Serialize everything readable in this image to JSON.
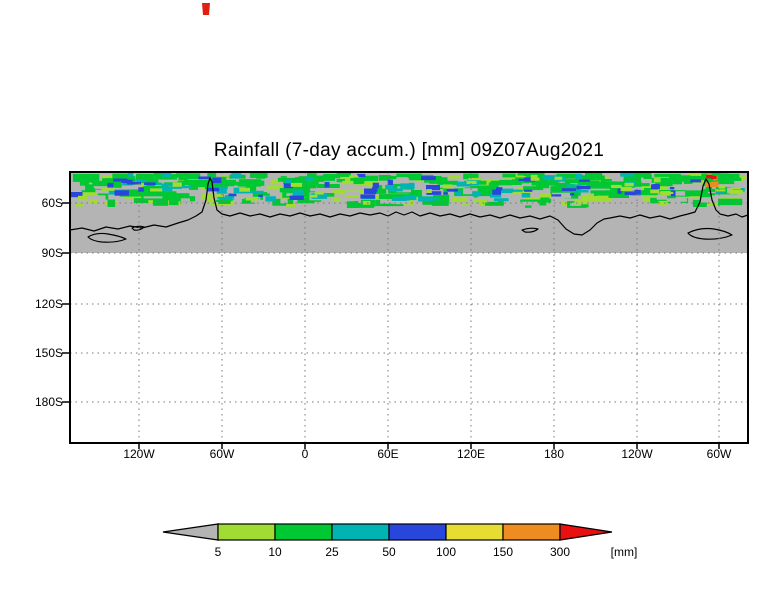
{
  "title": "Rainfall (7-day accum.) [mm] 09Z07Aug2021",
  "axes": {
    "y_labels": [
      "60S",
      "90S",
      "120S",
      "150S",
      "180S"
    ],
    "x_labels": [
      "120W",
      "60W",
      "0",
      "60E",
      "120E",
      "180",
      "120W",
      "60W"
    ]
  },
  "colorbar": {
    "labels": [
      "5",
      "10",
      "25",
      "50",
      "100",
      "150",
      "300"
    ],
    "unit": "[mm]",
    "segments": [
      {
        "range": "< 5",
        "color": "#b4b4b4"
      },
      {
        "range": "5-10",
        "color": "#a0dc32"
      },
      {
        "range": "10-25",
        "color": "#00c832"
      },
      {
        "range": "25-50",
        "color": "#00b4b4"
      },
      {
        "range": "50-100",
        "color": "#2846dc"
      },
      {
        "range": "100-150",
        "color": "#e6dc32"
      },
      {
        "range": "150-300",
        "color": "#ee8c22"
      },
      {
        "range": "> 300",
        "color": "#e81010"
      }
    ]
  },
  "map": {
    "land_color": "#b4b4b4",
    "coast_color": "#000000"
  },
  "chart_data": {
    "type": "heatmap",
    "title": "Rainfall (7-day accum.) [mm] 09Z07Aug2021",
    "variable": "7-day accumulated rainfall",
    "unit": "mm",
    "valid_time": "09Z07Aug2021",
    "x_tick_labels": [
      "120W",
      "60W",
      "0",
      "60E",
      "120E",
      "180",
      "120W",
      "60W"
    ],
    "y_tick_labels": [
      "60S",
      "90S",
      "120S",
      "150S",
      "180S"
    ],
    "color_levels": [
      5,
      10,
      25,
      50,
      100,
      150,
      300
    ],
    "level_colors": [
      "#b4b4b4",
      "#a0dc32",
      "#00c832",
      "#00b4b4",
      "#2846dc",
      "#e6dc32",
      "#ee8c22",
      "#e81010"
    ],
    "legend_position": "bottom",
    "grid": "dotted",
    "description": "Patchy band of rainfall shading (green/cyan/blue, small orange-red maxima near 60W) along the top of the map near 50S-60S; solid gray (below 5 mm / land mask) from ~60S to 90S with the Antarctic coastline drawn in black; blank white south of the 90S gridline"
  },
  "decor": {
    "band": {
      "seed": 123457,
      "height": 38,
      "blobs": [
        {
          "color": "#a0dc32",
          "count": 90,
          "wmin": 8,
          "wmax": 30,
          "hmin": 3,
          "hmax": 7,
          "ymin": 0,
          "ymax": 34
        },
        {
          "color": "#00c832",
          "count": 150,
          "wmin": 6,
          "wmax": 28,
          "hmin": 3,
          "hmax": 8,
          "ymin": 0,
          "ymax": 36
        },
        {
          "color": "#b4b4b4",
          "count": 80,
          "wmin": 6,
          "wmax": 22,
          "hmin": 2,
          "hmax": 6,
          "ymin": 4,
          "ymax": 34
        },
        {
          "color": "#00c832",
          "count": 80,
          "wmin": 8,
          "wmax": 26,
          "hmin": 3,
          "hmax": 6,
          "ymin": 0,
          "ymax": 16
        },
        {
          "color": "#00b4b4",
          "count": 55,
          "wmin": 5,
          "wmax": 16,
          "hmin": 2,
          "hmax": 6,
          "ymin": 0,
          "ymax": 30
        },
        {
          "color": "#2846dc",
          "count": 45,
          "wmin": 4,
          "wmax": 15,
          "hmin": 2,
          "hmax": 6,
          "ymin": 0,
          "ymax": 28
        },
        {
          "color": "#a0dc32",
          "count": 45,
          "wmin": 5,
          "wmax": 14,
          "hmin": 2,
          "hmax": 5,
          "ymin": 2,
          "ymax": 36
        },
        {
          "color": "#ee8c22",
          "count": 4,
          "wmin": 4,
          "wmax": 9,
          "hmin": 3,
          "hmax": 6,
          "xmin": 620,
          "xmax": 655,
          "ymin": 0,
          "ymax": 16
        },
        {
          "color": "#e81010",
          "count": 2,
          "wmin": 3,
          "wmax": 7,
          "hmin": 3,
          "hmax": 5,
          "xmin": 628,
          "xmax": 650,
          "ymin": 2,
          "ymax": 12
        }
      ]
    }
  }
}
